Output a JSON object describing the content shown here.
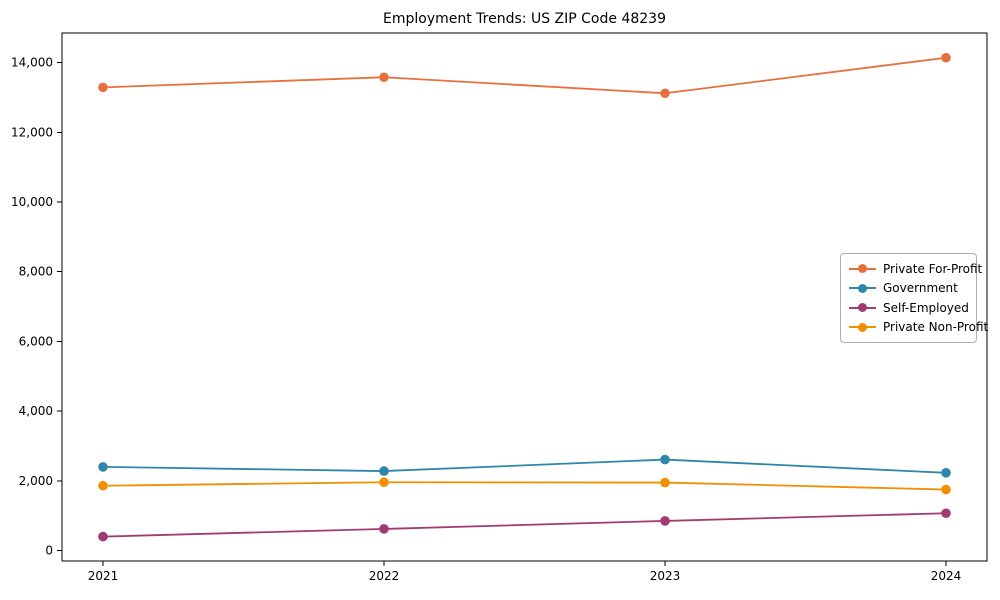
{
  "chart_data": {
    "type": "line",
    "title": "Employment Trends: US ZIP Code 48239",
    "categories": [
      "2021",
      "2022",
      "2023",
      "2024"
    ],
    "series": [
      {
        "name": "Private For-Profit",
        "color": "#E8703D",
        "values": [
          13290,
          13580,
          13120,
          14140
        ]
      },
      {
        "name": "Government",
        "color": "#2E86AB",
        "values": [
          2400,
          2280,
          2610,
          2230
        ]
      },
      {
        "name": "Self-Employed",
        "color": "#A23B72",
        "values": [
          400,
          620,
          850,
          1070
        ]
      },
      {
        "name": "Private Non-Profit",
        "color": "#F18F01",
        "values": [
          1860,
          1960,
          1950,
          1750
        ]
      }
    ],
    "xlabel": "",
    "ylabel": "",
    "ylim": [
      -300,
      14850
    ],
    "yticks": [
      0,
      2000,
      4000,
      6000,
      8000,
      10000,
      12000,
      14000
    ],
    "ytick_labels": [
      "0",
      "2,000",
      "4,000",
      "6,000",
      "8,000",
      "10,000",
      "12,000",
      "14,000"
    ],
    "legend_position": "center right",
    "grid": false,
    "axis_color": "#000000",
    "background_color": "#ffffff"
  }
}
